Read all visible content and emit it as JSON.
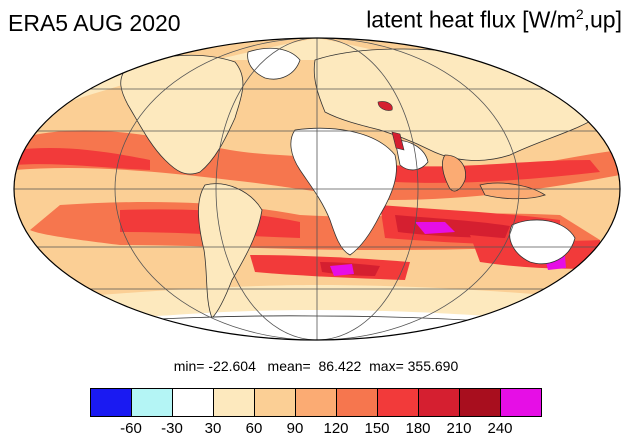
{
  "title_left": "ERA5 AUG 2020",
  "title_right": {
    "pre": "latent heat flux [W/m",
    "sup": "2",
    "post": ",up]"
  },
  "stats": {
    "min_label": "min=",
    "min": "-22.604",
    "mean_label": "mean=",
    "mean": "86.422",
    "max_label": "max=",
    "max": "355.690"
  },
  "colorbar": {
    "colors": [
      "#1a1af2",
      "#b4f5f5",
      "#ffffff",
      "#fde9be",
      "#fbcf95",
      "#fbab73",
      "#f6764e",
      "#f23a3a",
      "#d51f30",
      "#a80e1e",
      "#e60ee6"
    ],
    "labels": [
      "-60",
      "-30",
      "30",
      "60",
      "90",
      "120",
      "150",
      "180",
      "210",
      "240"
    ]
  },
  "map": {
    "projection": "Mollweide",
    "ocean_color": "#fbcf95"
  }
}
